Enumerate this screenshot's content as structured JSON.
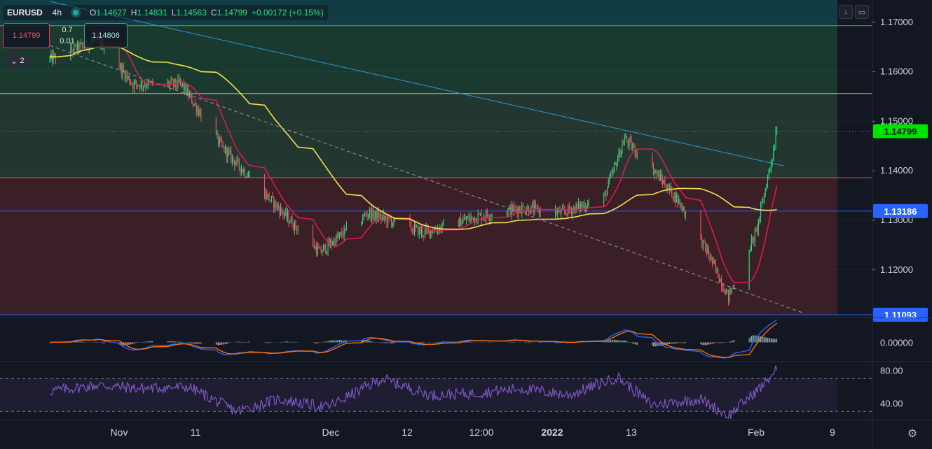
{
  "header": {
    "symbol": "EURUSD",
    "timeframe": "4h",
    "open_label": "O",
    "open": "1.14627",
    "high_label": "H",
    "high": "1.14831",
    "low_label": "L",
    "low": "1.14563",
    "close_label": "C",
    "close": "1.14799",
    "change": "+0.00172 (+0.15%)"
  },
  "trade": {
    "sell_price": "1.14799",
    "buy_price": "1.14806",
    "spread_top": "0.7",
    "spread_bottom": "0.01",
    "collapse_label": "2"
  },
  "price_axis": {
    "ticks": [
      "1.17000",
      "1.16000",
      "1.15000",
      "1.14000",
      "1.13000",
      "1.12000"
    ],
    "tick_values": [
      1.17,
      1.16,
      1.15,
      1.14,
      1.13,
      1.12
    ],
    "current_price_label": "1.14799",
    "level_labels": [
      "1.13186",
      "1.11093"
    ]
  },
  "macd_axis": {
    "ticks": [
      "0.00000"
    ]
  },
  "rsi_axis": {
    "ticks": [
      "80.00",
      "40.00"
    ],
    "tick_values": [
      80,
      40
    ]
  },
  "time_axis": {
    "labels": [
      "Nov",
      "11",
      "Dec",
      "12",
      "12:00",
      "2022",
      "13",
      "Feb",
      "9"
    ],
    "bold": [
      false,
      false,
      false,
      false,
      false,
      true,
      false,
      false,
      false
    ]
  },
  "colors": {
    "background": "#131722",
    "up": "#26e07f",
    "down": "#f7525f",
    "ma_fast": "#d81b4e",
    "ma_slow": "#f4e04d",
    "trend": "#2c98d8",
    "rsi": "#7e57c2",
    "macd": "#2962ff",
    "signal": "#ff6d00",
    "price_label_bg": "#00e400",
    "level_label_bg": "#2962ff"
  },
  "chart_data": [
    {
      "type": "candlestick",
      "symbol": "EURUSD",
      "interval": "4h",
      "ylim": [
        1.1105,
        1.1745
      ],
      "last_close": 1.14799,
      "anchors_date": [
        "2021-10-22",
        "2021-10-29",
        "2021-11-03",
        "2021-11-10",
        "2021-11-16",
        "2021-11-24",
        "2021-11-30",
        "2021-12-07",
        "2021-12-15",
        "2021-12-22",
        "2021-12-29",
        "2022-01-04",
        "2022-01-10",
        "2022-01-13",
        "2022-01-17",
        "2022-01-21",
        "2022-01-25",
        "2022-01-28",
        "2022-02-01",
        "2022-02-04"
      ],
      "anchors_close": [
        1.1625,
        1.1665,
        1.1575,
        1.1575,
        1.1445,
        1.1325,
        1.1235,
        1.1315,
        1.1275,
        1.1305,
        1.1325,
        1.1315,
        1.1345,
        1.1465,
        1.1405,
        1.1335,
        1.1235,
        1.1145,
        1.1275,
        1.1475
      ],
      "levels": [
        {
          "value": 1.1693,
          "color": "#4caf50"
        },
        {
          "value": 1.1556,
          "color": "#9ccc65"
        },
        {
          "value": 1.1386,
          "color": "#ef5350"
        },
        {
          "value": 1.13186,
          "label": "1.13186",
          "color": "#2962ff"
        },
        {
          "value": 1.11093,
          "label": "1.11093",
          "color": "#2962ff"
        }
      ],
      "zones": [
        {
          "from": 1.1693,
          "to": 1.1745,
          "color": "#123c44"
        },
        {
          "from": 1.1556,
          "to": 1.1693,
          "color": "#1a3a2f"
        },
        {
          "from": 1.1386,
          "to": 1.1556,
          "color": "#243630"
        },
        {
          "from": 1.11093,
          "to": 1.1386,
          "color": "#3a1f27"
        }
      ],
      "trendlines": [
        {
          "from": [
            "2021-10-22",
            1.1742
          ],
          "to": [
            "2022-02-05",
            1.141
          ],
          "style": "solid"
        },
        {
          "from": [
            "2021-10-22",
            1.1653
          ],
          "to": [
            "2022-02-08",
            1.1112
          ],
          "style": "dashed"
        }
      ],
      "moving_averages": [
        {
          "period": 20,
          "color": "#d81b4e"
        },
        {
          "period": 100,
          "color": "#f4e04d"
        }
      ]
    },
    {
      "type": "line",
      "indicator": "MACD",
      "ylim": [
        -0.006,
        0.006
      ],
      "zero_label": "0.00000"
    },
    {
      "type": "line",
      "indicator": "RSI",
      "ylim": [
        20,
        90
      ],
      "bands": [
        70,
        30
      ],
      "anchors_date": [
        "2021-10-22",
        "2021-10-29",
        "2021-11-04",
        "2021-11-11",
        "2021-11-18",
        "2021-11-24",
        "2021-12-01",
        "2021-12-09",
        "2021-12-16",
        "2021-12-22",
        "2021-12-29",
        "2022-01-05",
        "2022-01-12",
        "2022-01-17",
        "2022-01-24",
        "2022-01-28",
        "2022-02-02",
        "2022-02-04"
      ],
      "anchors_value": [
        55,
        62,
        58,
        60,
        30,
        45,
        35,
        70,
        50,
        52,
        58,
        50,
        72,
        38,
        45,
        25,
        62,
        82
      ]
    }
  ]
}
